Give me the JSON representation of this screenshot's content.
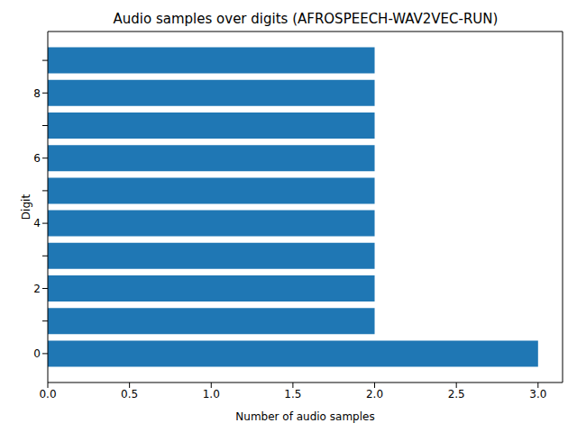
{
  "chart_data": {
    "type": "bar",
    "orientation": "horizontal",
    "title": "Audio samples over digits (AFROSPEECH-WAV2VEC-RUN)",
    "x_label": "Number of audio samples",
    "y_label": "Digit",
    "categories": [
      0,
      null,
      2,
      null,
      4,
      null,
      6,
      null,
      8,
      null
    ],
    "values": [
      3,
      2,
      2,
      2,
      2,
      2,
      2,
      2,
      2,
      2
    ],
    "color": "#1f77b4",
    "xlim": [
      0,
      3.15
    ],
    "xticks": [
      {
        "value": 0,
        "label": "0.0"
      },
      {
        "value": 0.5,
        "label": "0.5"
      },
      {
        "value": 1,
        "label": "1.0"
      },
      {
        "value": 1.5,
        "label": "1.5"
      },
      {
        "value": 2,
        "label": "2.0"
      },
      {
        "value": 2.5,
        "label": "2.5"
      },
      {
        "value": 3,
        "label": "3.0"
      }
    ],
    "grid": false
  }
}
